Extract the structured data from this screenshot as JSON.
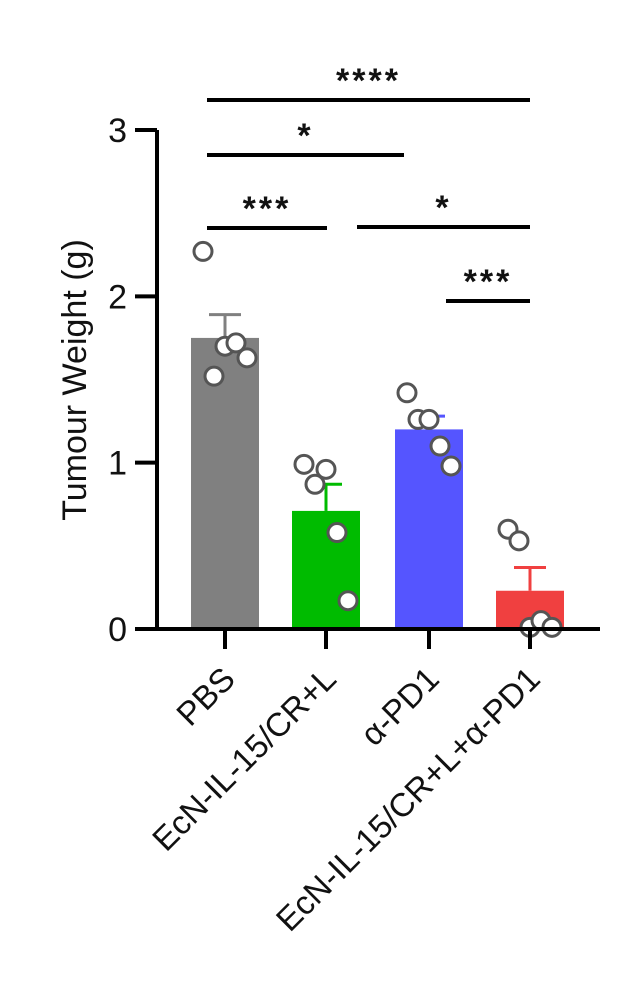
{
  "chart_data": {
    "type": "bar",
    "title": "",
    "xlabel": "",
    "ylabel": "Tumour Weight (g)",
    "ylim": [
      0,
      3
    ],
    "yticks": [
      0,
      1,
      2,
      3
    ],
    "categories": [
      "PBS",
      "EcN-IL-15/CR+L",
      "α-PD1",
      "EcN-IL-15/CR+L+α-PD1"
    ],
    "values": [
      1.75,
      0.71,
      1.2,
      0.23
    ],
    "errors": [
      0.14,
      0.16,
      0.08,
      0.14
    ],
    "colors": [
      "#808080",
      "#00bb00",
      "#5555ff",
      "#f04040"
    ],
    "points": [
      [
        2.27,
        1.52,
        1.7,
        1.72,
        1.63
      ],
      [
        0.99,
        0.87,
        0.96,
        0.58,
        0.17
      ],
      [
        1.42,
        1.26,
        1.26,
        1.1,
        0.98
      ],
      [
        0.6,
        0.53,
        0.01,
        0.05,
        0.01
      ]
    ],
    "grid": false,
    "legend": "none",
    "significance": [
      {
        "from": 0,
        "to": 3,
        "label": "****"
      },
      {
        "from": 0,
        "to": 2,
        "label": "*"
      },
      {
        "from": 0,
        "to": 1,
        "label": "***"
      },
      {
        "from": 1,
        "to": 3,
        "label": "*"
      },
      {
        "from": 2,
        "to": 3,
        "label": "***"
      }
    ]
  }
}
